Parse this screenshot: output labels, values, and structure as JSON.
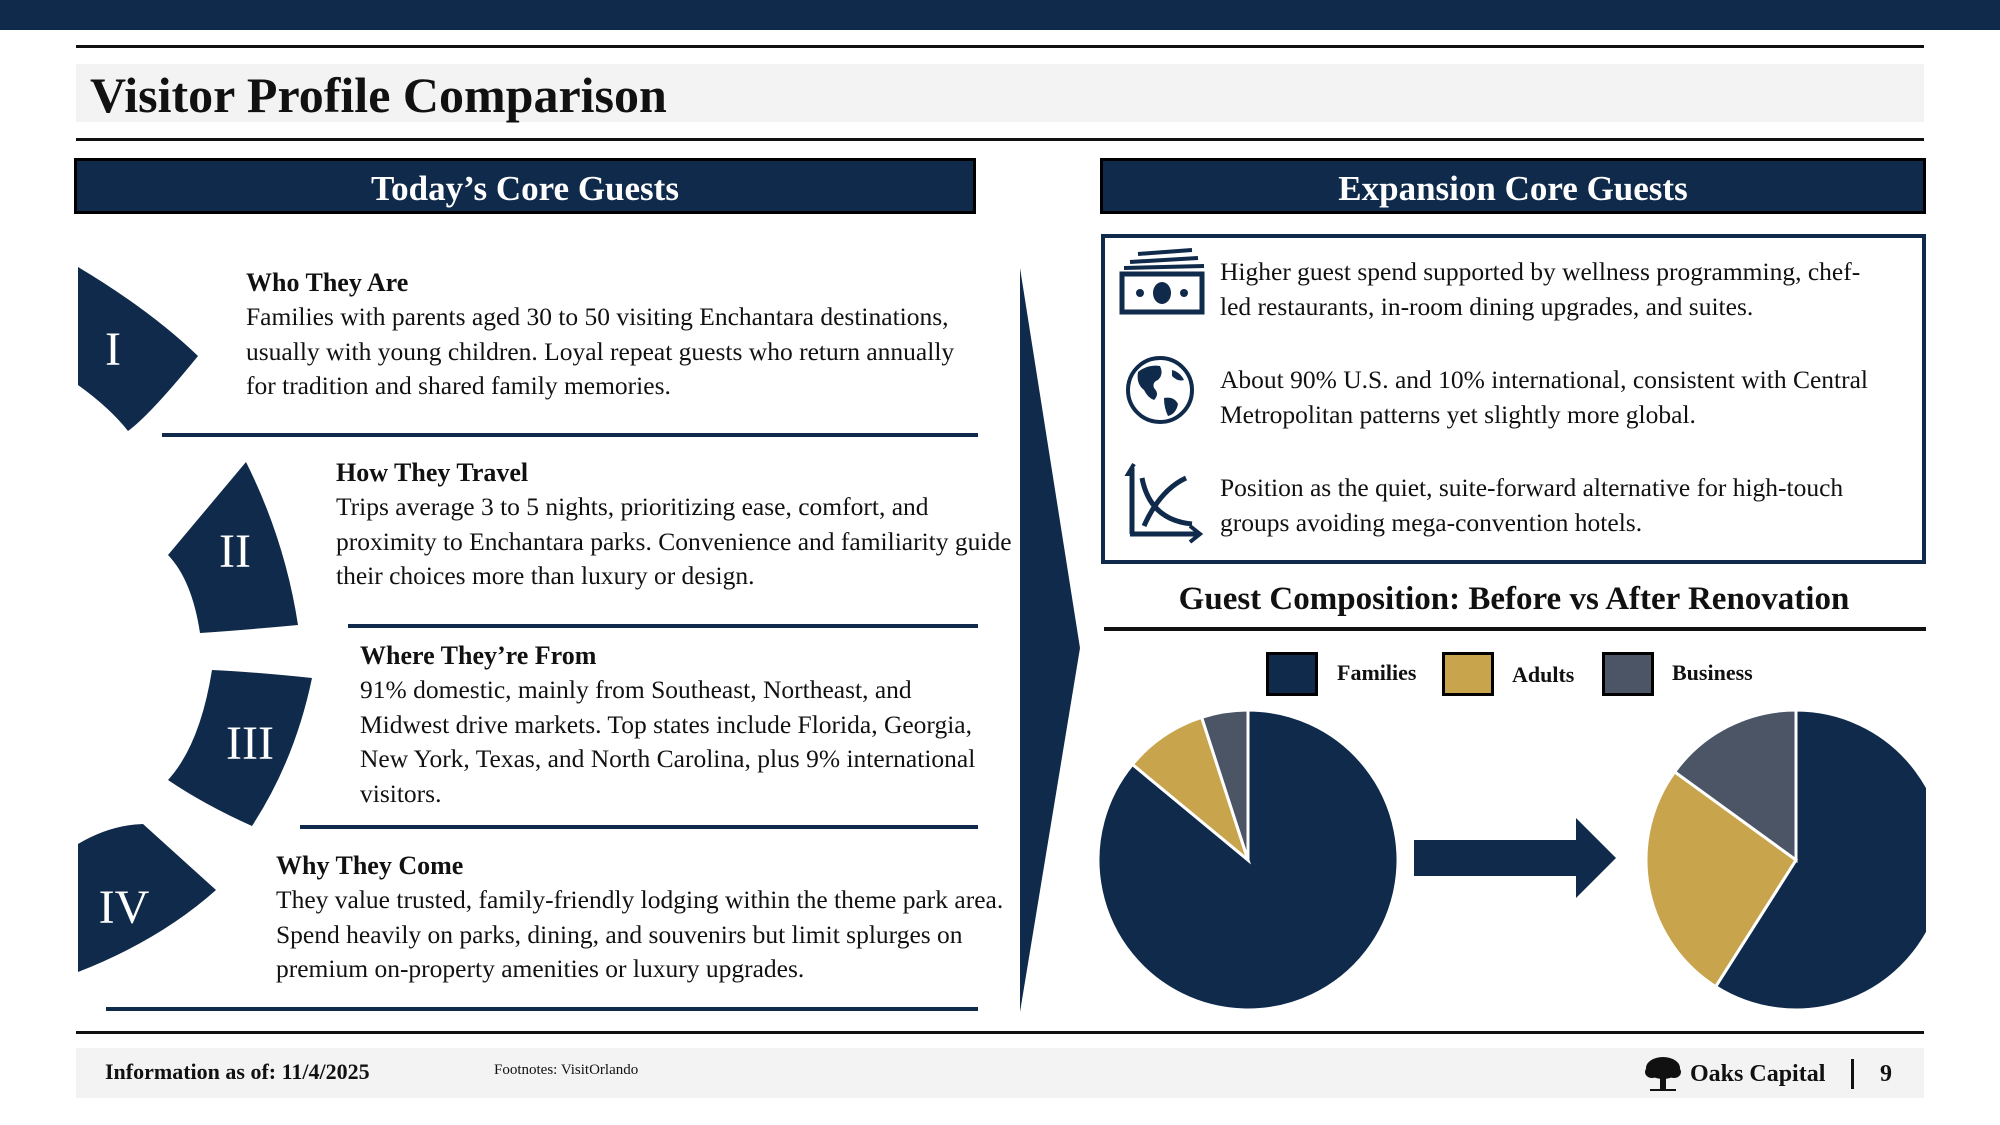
{
  "title": "Visitor Profile Comparison",
  "left_header": "Today’s Core Guests",
  "right_header": "Expansion Core Guests",
  "items": [
    {
      "numeral": "I",
      "heading": "Who They Are",
      "body": "Families with parents aged 30 to 50 visiting Enchantara destinations, usually with young children. Loyal repeat guests who return annually for tradition and shared family memories."
    },
    {
      "numeral": "II",
      "heading": "How They Travel",
      "body": "Trips average 3 to 5 nights, prioritizing ease, comfort, and proximity to Enchantara parks. Convenience and familiarity guide their choices more than luxury or design."
    },
    {
      "numeral": "III",
      "heading": "Where They’re From",
      "body": "91% domestic, mainly from Southeast, Northeast, and Midwest drive markets. Top states include Florida, Georgia, New York, Texas, and North Carolina, plus 9% international visitors."
    },
    {
      "numeral": "IV",
      "heading": "Why They Come",
      "body": "They value trusted, family-friendly lodging within the theme park area. Spend heavily on parks, dining, and souvenirs but limit splurges on premium on-property amenities or luxury upgrades."
    }
  ],
  "expansion": [
    {
      "icon": "money-icon",
      "text": "Higher guest spend supported by wellness programming, chef-led restaurants, in-room dining upgrades, and suites."
    },
    {
      "icon": "globe-icon",
      "text": "About 90% U.S. and 10% international, consistent with Central Metropolitan patterns yet slightly more global."
    },
    {
      "icon": "chart-axis-icon",
      "text": "Position as the quiet, suite-forward alternative for high-touch groups avoiding mega-convention hotels."
    }
  ],
  "chart_data": {
    "type": "pie",
    "title": "Guest Composition: Before vs After Renovation",
    "legend": [
      "Families",
      "Adults",
      "Business"
    ],
    "legend_placement": "top",
    "colors": [
      "#0f2a4a",
      "#c8a44c",
      "#4b5566"
    ],
    "pies": [
      {
        "values": [
          86,
          9,
          5
        ]
      },
      {
        "values": [
          59,
          26,
          15
        ]
      }
    ]
  },
  "footer": {
    "date": "Information as of: 11/4/2025",
    "footnote": "Footnotes: VisitOrlando",
    "brand": "Oaks Capital",
    "page": "9"
  }
}
